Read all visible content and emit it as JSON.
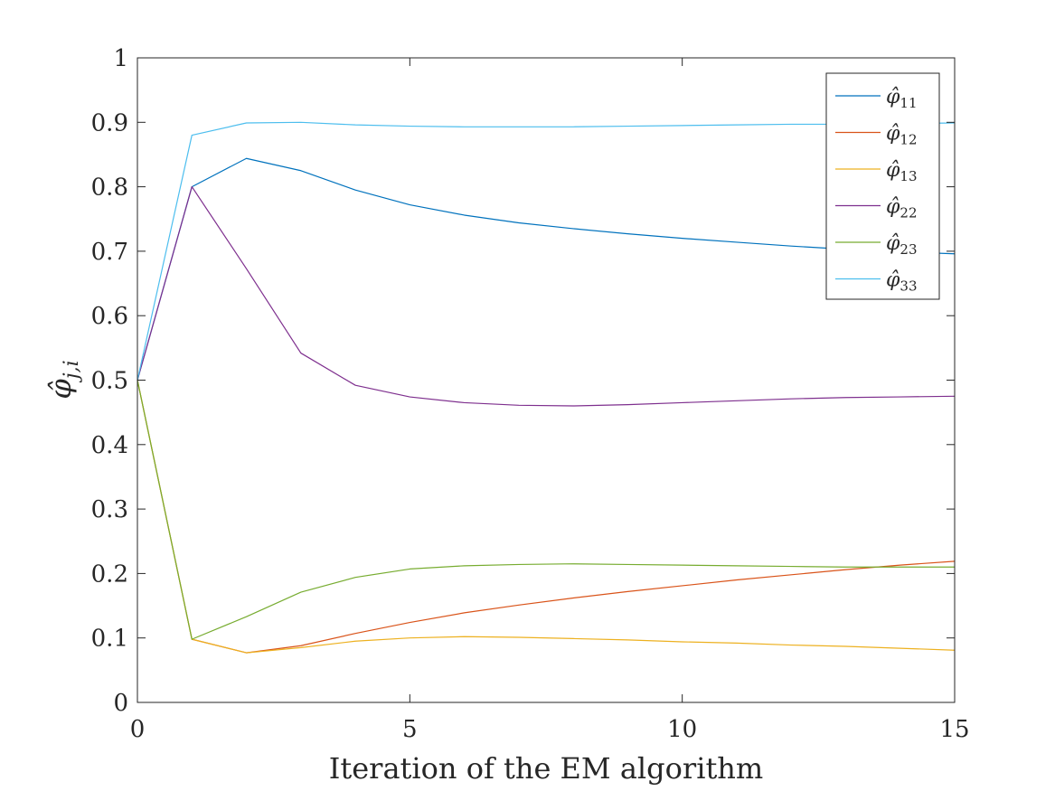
{
  "chart_data": {
    "type": "line",
    "xlabel": "Iteration of the EM algorithm",
    "ylabel": "φ̂_{j,i}",
    "ylabel_symbol": "φ̂",
    "ylabel_subscript": "j,i",
    "xlim": [
      0,
      15
    ],
    "ylim": [
      0,
      1
    ],
    "xticks": [
      0,
      5,
      10,
      15
    ],
    "xtick_labels": [
      "0",
      "5",
      "10",
      "15"
    ],
    "yticks": [
      0,
      0.1,
      0.2,
      0.3,
      0.4,
      0.5,
      0.6,
      0.7,
      0.8,
      0.9,
      1
    ],
    "ytick_labels": [
      "0",
      "0.1",
      "0.2",
      "0.3",
      "0.4",
      "0.5",
      "0.6",
      "0.7",
      "0.8",
      "0.9",
      "1"
    ],
    "grid": false,
    "legend_position": "top-right",
    "x": [
      0,
      1,
      2,
      3,
      4,
      5,
      6,
      7,
      8,
      9,
      10,
      11,
      12,
      13,
      14,
      15
    ],
    "series": [
      {
        "name": "φ̂_11",
        "symbol": "φ̂",
        "sub": "11",
        "color": "#0072BD",
        "values": [
          0.5,
          0.8,
          0.844,
          0.825,
          0.795,
          0.772,
          0.756,
          0.744,
          0.735,
          0.727,
          0.72,
          0.714,
          0.708,
          0.703,
          0.699,
          0.696
        ]
      },
      {
        "name": "φ̂_12",
        "symbol": "φ̂",
        "sub": "12",
        "color": "#D95319",
        "values": [
          0.5,
          0.098,
          0.077,
          0.088,
          0.107,
          0.124,
          0.139,
          0.151,
          0.162,
          0.172,
          0.181,
          0.19,
          0.198,
          0.206,
          0.213,
          0.219
        ]
      },
      {
        "name": "φ̂_13",
        "symbol": "φ̂",
        "sub": "13",
        "color": "#EDB120",
        "values": [
          0.5,
          0.098,
          0.077,
          0.085,
          0.095,
          0.1,
          0.102,
          0.101,
          0.099,
          0.097,
          0.094,
          0.092,
          0.089,
          0.087,
          0.084,
          0.081
        ]
      },
      {
        "name": "φ̂_22",
        "symbol": "φ̂",
        "sub": "22",
        "color": "#7E2F8E",
        "values": [
          0.5,
          0.8,
          0.673,
          0.542,
          0.492,
          0.474,
          0.465,
          0.461,
          0.46,
          0.462,
          0.465,
          0.468,
          0.471,
          0.473,
          0.474,
          0.475
        ]
      },
      {
        "name": "φ̂_23",
        "symbol": "φ̂",
        "sub": "23",
        "color": "#77AC30",
        "values": [
          0.5,
          0.098,
          0.133,
          0.171,
          0.194,
          0.207,
          0.212,
          0.214,
          0.215,
          0.214,
          0.213,
          0.212,
          0.211,
          0.21,
          0.21,
          0.21
        ]
      },
      {
        "name": "φ̂_33",
        "symbol": "φ̂",
        "sub": "33",
        "color": "#4DBEEE",
        "values": [
          0.5,
          0.88,
          0.899,
          0.9,
          0.896,
          0.894,
          0.893,
          0.893,
          0.893,
          0.894,
          0.895,
          0.896,
          0.897,
          0.897,
          0.898,
          0.899
        ]
      }
    ]
  }
}
